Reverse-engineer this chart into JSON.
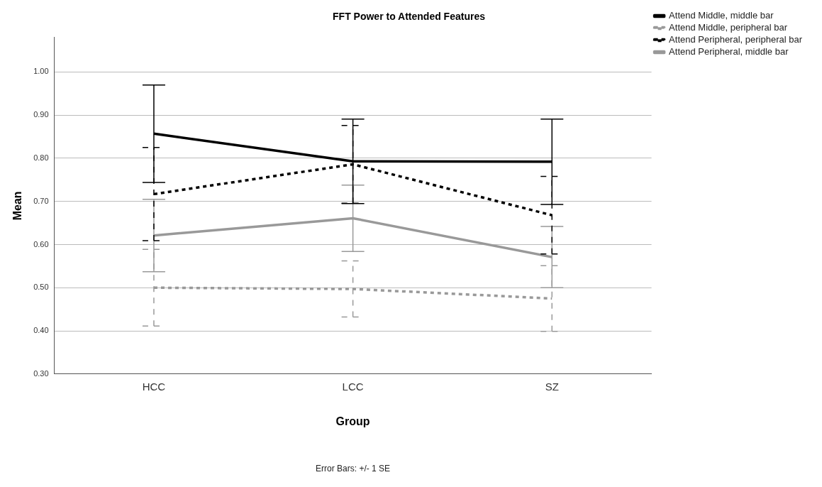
{
  "chart_data": {
    "type": "line",
    "title": "FFT Power to Attended Features",
    "xlabel": "Group",
    "ylabel": "Mean",
    "categories": [
      "HCC",
      "LCC",
      "SZ"
    ],
    "series": [
      {
        "name": "Attend Middle, middle bar",
        "color": "#000000",
        "line_style": "solid",
        "values": [
          0.857,
          0.793,
          0.792
        ],
        "errors": [
          0.113,
          0.098,
          0.099
        ]
      },
      {
        "name": "Attend Middle, peripheral bar",
        "color": "#999999",
        "line_style": "dotted",
        "values": [
          0.5,
          0.497,
          0.475
        ],
        "errors": [
          0.089,
          0.065,
          0.076
        ]
      },
      {
        "name": "Attend Peripheral, peripheral bar",
        "color": "#000000",
        "line_style": "dotted",
        "values": [
          0.717,
          0.786,
          0.668
        ],
        "errors": [
          0.108,
          0.09,
          0.09
        ]
      },
      {
        "name": "Attend Peripheral, middle bar",
        "color": "#999999",
        "line_style": "solid",
        "values": [
          0.621,
          0.661,
          0.571
        ],
        "errors": [
          0.084,
          0.077,
          0.071
        ]
      }
    ],
    "ylim": [
      0.3,
      1.08
    ],
    "yticks": [
      {
        "value": 0.3,
        "label": "0.30"
      },
      {
        "value": 0.4,
        "label": "0.40"
      },
      {
        "value": 0.5,
        "label": "0.50"
      },
      {
        "value": 0.6,
        "label": "0.60"
      },
      {
        "value": 0.7,
        "label": "0.70"
      },
      {
        "value": 0.8,
        "label": "0.80"
      },
      {
        "value": 0.9,
        "label": "0.90"
      },
      {
        "value": 1.0,
        "label": "1.00"
      }
    ],
    "grid": "y",
    "legend": "top right",
    "marker": "none",
    "annotations": [
      "Error Bars: +/- 1 SE"
    ]
  }
}
